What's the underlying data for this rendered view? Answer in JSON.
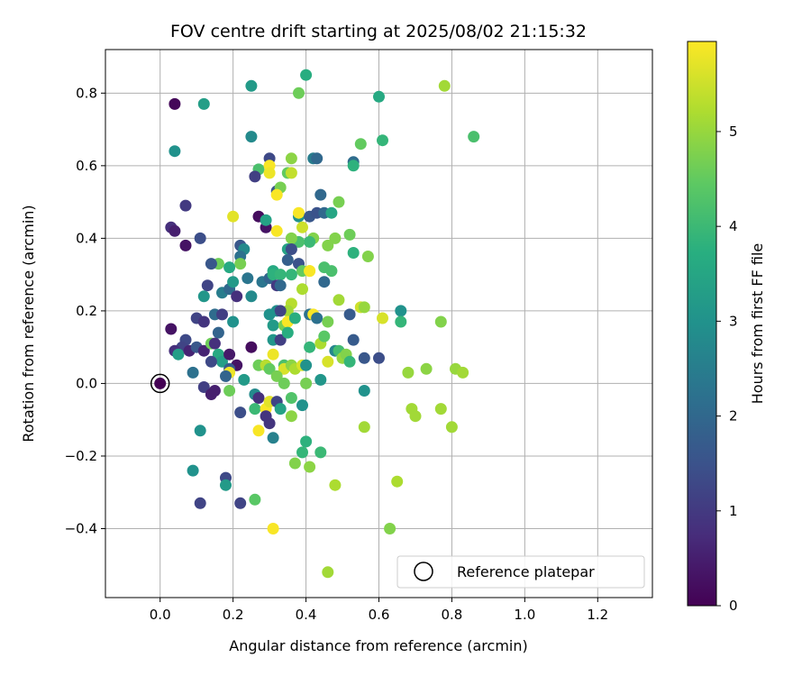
{
  "chart_data": {
    "type": "scatter",
    "title": "FOV centre drift starting at 2025/08/02 21:15:32",
    "xlabel": "Angular distance from reference (arcmin)",
    "ylabel": "Rotation from reference (arcmin)",
    "xlim": [
      -0.15,
      1.35
    ],
    "ylim": [
      -0.59,
      0.92
    ],
    "xticks": [
      "0.0",
      "0.2",
      "0.4",
      "0.6",
      "0.8",
      "1.0",
      "1.2"
    ],
    "xtick_values": [
      0.0,
      0.2,
      0.4,
      0.6,
      0.8,
      1.0,
      1.2
    ],
    "yticks": [
      "−0.4",
      "−0.2",
      "0.0",
      "0.2",
      "0.4",
      "0.6",
      "0.8"
    ],
    "ytick_values": [
      -0.4,
      -0.2,
      0.0,
      0.2,
      0.4,
      0.6,
      0.8
    ],
    "grid": true,
    "colormap": "viridis",
    "colorbar": {
      "label": "Hours from first FF file",
      "range": [
        0,
        5.95
      ],
      "ticks": [
        "0",
        "1",
        "2",
        "3",
        "4",
        "5"
      ],
      "tick_values": [
        0,
        1,
        2,
        3,
        4,
        5
      ]
    },
    "legend": {
      "entries": [
        "Reference platepar"
      ],
      "placement": "lower-right"
    },
    "reference": {
      "x": 0.0,
      "y": 0.0
    },
    "series": [
      {
        "points": [
          [
            0.04,
            0.77,
            0.1
          ],
          [
            0.12,
            0.77,
            3.3
          ],
          [
            0.04,
            0.64,
            3.0
          ],
          [
            0.25,
            0.82,
            3.2
          ],
          [
            0.4,
            0.85,
            3.7
          ],
          [
            0.38,
            0.8,
            4.6
          ],
          [
            0.6,
            0.79,
            3.6
          ],
          [
            0.78,
            0.82,
            5.1
          ],
          [
            0.86,
            0.68,
            4.2
          ],
          [
            0.25,
            0.68,
            2.8
          ],
          [
            0.3,
            0.62,
            1.3
          ],
          [
            0.27,
            0.59,
            4.2
          ],
          [
            0.3,
            0.6,
            5.9
          ],
          [
            0.3,
            0.58,
            5.8
          ],
          [
            0.26,
            0.57,
            1.1
          ],
          [
            0.36,
            0.62,
            4.9
          ],
          [
            0.35,
            0.58,
            4.5
          ],
          [
            0.36,
            0.58,
            5.4
          ],
          [
            0.32,
            0.53,
            1.6
          ],
          [
            0.33,
            0.54,
            4.7
          ],
          [
            0.32,
            0.52,
            5.9
          ],
          [
            0.42,
            0.62,
            2.5
          ],
          [
            0.43,
            0.62,
            2.0
          ],
          [
            0.53,
            0.61,
            2.1
          ],
          [
            0.53,
            0.6,
            3.8
          ],
          [
            0.55,
            0.66,
            4.5
          ],
          [
            0.61,
            0.67,
            3.9
          ],
          [
            0.44,
            0.52,
            2.0
          ],
          [
            0.49,
            0.5,
            4.7
          ],
          [
            0.07,
            0.49,
            1.0
          ],
          [
            0.03,
            0.43,
            0.8
          ],
          [
            0.04,
            0.42,
            0.5
          ],
          [
            0.07,
            0.38,
            0.3
          ],
          [
            0.11,
            0.4,
            1.4
          ],
          [
            0.2,
            0.46,
            5.7
          ],
          [
            0.27,
            0.46,
            0.2
          ],
          [
            0.29,
            0.43,
            0.3
          ],
          [
            0.29,
            0.45,
            3.4
          ],
          [
            0.32,
            0.42,
            5.9
          ],
          [
            0.38,
            0.46,
            3.0
          ],
          [
            0.38,
            0.47,
            5.9
          ],
          [
            0.39,
            0.43,
            5.5
          ],
          [
            0.41,
            0.46,
            1.6
          ],
          [
            0.43,
            0.47,
            1.5
          ],
          [
            0.45,
            0.47,
            2.0
          ],
          [
            0.47,
            0.47,
            3.5
          ],
          [
            0.52,
            0.41,
            4.6
          ],
          [
            0.53,
            0.36,
            3.8
          ],
          [
            0.57,
            0.35,
            4.8
          ],
          [
            0.48,
            0.4,
            4.8
          ],
          [
            0.46,
            0.38,
            4.8
          ],
          [
            0.42,
            0.4,
            4.8
          ],
          [
            0.41,
            0.39,
            4.0
          ],
          [
            0.38,
            0.39,
            4.2
          ],
          [
            0.36,
            0.4,
            4.8
          ],
          [
            0.35,
            0.37,
            3.4
          ],
          [
            0.36,
            0.37,
            1.4
          ],
          [
            0.38,
            0.33,
            1.5
          ],
          [
            0.35,
            0.34,
            1.8
          ],
          [
            0.39,
            0.31,
            4.5
          ],
          [
            0.41,
            0.31,
            5.8
          ],
          [
            0.45,
            0.32,
            4.2
          ],
          [
            0.47,
            0.31,
            4.2
          ],
          [
            0.45,
            0.28,
            2.0
          ],
          [
            0.41,
            0.31,
            5.9
          ],
          [
            0.22,
            0.38,
            1.6
          ],
          [
            0.23,
            0.37,
            2.8
          ],
          [
            0.22,
            0.35,
            2.2
          ],
          [
            0.22,
            0.33,
            4.7
          ],
          [
            0.19,
            0.32,
            3.6
          ],
          [
            0.16,
            0.33,
            4.6
          ],
          [
            0.14,
            0.33,
            1.6
          ],
          [
            0.28,
            0.28,
            2.3
          ],
          [
            0.3,
            0.29,
            1.9
          ],
          [
            0.31,
            0.31,
            3.6
          ],
          [
            0.31,
            0.3,
            3.8
          ],
          [
            0.33,
            0.3,
            3.9
          ],
          [
            0.32,
            0.27,
            1.0
          ],
          [
            0.33,
            0.27,
            2.0
          ],
          [
            0.36,
            0.3,
            3.9
          ],
          [
            0.39,
            0.26,
            5.2
          ],
          [
            0.36,
            0.22,
            5.3
          ],
          [
            0.35,
            0.2,
            5.1
          ],
          [
            0.32,
            0.2,
            2.9
          ],
          [
            0.33,
            0.2,
            1.2
          ],
          [
            0.3,
            0.19,
            3.0
          ],
          [
            0.31,
            0.16,
            3.2
          ],
          [
            0.34,
            0.16,
            4.7
          ],
          [
            0.35,
            0.17,
            5.9
          ],
          [
            0.37,
            0.18,
            3.7
          ],
          [
            0.41,
            0.19,
            2.2
          ],
          [
            0.42,
            0.19,
            5.9
          ],
          [
            0.43,
            0.18,
            2.2
          ],
          [
            0.46,
            0.17,
            4.7
          ],
          [
            0.49,
            0.23,
            5.1
          ],
          [
            0.52,
            0.19,
            1.7
          ],
          [
            0.55,
            0.21,
            5.5
          ],
          [
            0.56,
            0.21,
            5.0
          ],
          [
            0.61,
            0.18,
            5.6
          ],
          [
            0.66,
            0.2,
            3.0
          ],
          [
            0.66,
            0.17,
            3.9
          ],
          [
            0.77,
            0.17,
            4.8
          ],
          [
            0.1,
            0.18,
            1.2
          ],
          [
            0.12,
            0.17,
            0.9
          ],
          [
            0.13,
            0.27,
            1.2
          ],
          [
            0.15,
            0.19,
            2.1
          ],
          [
            0.17,
            0.19,
            1.1
          ],
          [
            0.17,
            0.25,
            2.5
          ],
          [
            0.19,
            0.26,
            2.0
          ],
          [
            0.2,
            0.28,
            3.2
          ],
          [
            0.21,
            0.24,
            0.8
          ],
          [
            0.24,
            0.29,
            2.3
          ],
          [
            0.25,
            0.24,
            2.8
          ],
          [
            0.2,
            0.17,
            3.0
          ],
          [
            0.16,
            0.14,
            1.9
          ],
          [
            0.12,
            0.24,
            3.1
          ],
          [
            0.03,
            0.15,
            0.3
          ],
          [
            0.07,
            0.12,
            1.3
          ],
          [
            0.06,
            0.1,
            1.2
          ],
          [
            0.04,
            0.09,
            0.8
          ],
          [
            0.05,
            0.08,
            3.3
          ],
          [
            0.08,
            0.09,
            0.6
          ],
          [
            0.1,
            0.1,
            1.6
          ],
          [
            0.12,
            0.09,
            0.6
          ],
          [
            0.09,
            0.03,
            2.2
          ],
          [
            0.14,
            0.11,
            4.6
          ],
          [
            0.15,
            0.11,
            0.8
          ],
          [
            0.16,
            0.08,
            3.6
          ],
          [
            0.17,
            0.06,
            3.3
          ],
          [
            0.14,
            0.06,
            1.3
          ],
          [
            0.19,
            0.08,
            0.4
          ],
          [
            0.21,
            0.05,
            0.3
          ],
          [
            0.19,
            0.04,
            1.7
          ],
          [
            0.19,
            0.03,
            5.8
          ],
          [
            0.18,
            0.02,
            1.9
          ],
          [
            0.23,
            0.01,
            3.2
          ],
          [
            0.25,
            0.1,
            0.2
          ],
          [
            0.27,
            0.05,
            4.6
          ],
          [
            0.29,
            0.05,
            5.3
          ],
          [
            0.3,
            0.04,
            4.5
          ],
          [
            0.31,
            0.08,
            5.8
          ],
          [
            0.31,
            0.12,
            3.1
          ],
          [
            0.33,
            0.12,
            1.1
          ],
          [
            0.35,
            0.14,
            3.7
          ],
          [
            0.34,
            0.05,
            4.2
          ],
          [
            0.34,
            0.04,
            5.6
          ],
          [
            0.32,
            0.02,
            4.7
          ],
          [
            0.34,
            0.0,
            4.6
          ],
          [
            0.36,
            0.05,
            4.9
          ],
          [
            0.37,
            0.04,
            5.2
          ],
          [
            0.39,
            0.05,
            5.6
          ],
          [
            0.4,
            0.05,
            3.0
          ],
          [
            0.41,
            0.1,
            3.9
          ],
          [
            0.44,
            0.11,
            5.2
          ],
          [
            0.45,
            0.13,
            4.4
          ],
          [
            0.44,
            0.01,
            3.1
          ],
          [
            0.46,
            0.06,
            5.6
          ],
          [
            0.48,
            0.09,
            2.7
          ],
          [
            0.49,
            0.09,
            4.1
          ],
          [
            0.5,
            0.07,
            5.0
          ],
          [
            0.51,
            0.08,
            4.8
          ],
          [
            0.52,
            0.06,
            3.9
          ],
          [
            0.53,
            0.12,
            1.7
          ],
          [
            0.56,
            0.07,
            1.6
          ],
          [
            0.6,
            0.07,
            1.4
          ],
          [
            0.68,
            0.03,
            5.0
          ],
          [
            0.73,
            0.04,
            4.9
          ],
          [
            0.81,
            0.04,
            5.0
          ],
          [
            0.83,
            0.03,
            5.1
          ],
          [
            0.69,
            -0.07,
            5.1
          ],
          [
            0.7,
            -0.09,
            5.1
          ],
          [
            0.77,
            -0.07,
            5.1
          ],
          [
            0.8,
            -0.12,
            5.1
          ],
          [
            0.56,
            -0.02,
            3.0
          ],
          [
            0.56,
            -0.12,
            5.1
          ],
          [
            0.12,
            -0.01,
            1.1
          ],
          [
            0.14,
            -0.03,
            0.5
          ],
          [
            0.15,
            -0.02,
            0.5
          ],
          [
            0.19,
            -0.02,
            4.6
          ],
          [
            0.26,
            -0.03,
            2.8
          ],
          [
            0.27,
            -0.04,
            0.8
          ],
          [
            0.26,
            -0.07,
            4.0
          ],
          [
            0.29,
            -0.07,
            5.9
          ],
          [
            0.3,
            -0.05,
            5.7
          ],
          [
            0.3,
            -0.11,
            0.9
          ],
          [
            0.31,
            -0.15,
            2.6
          ],
          [
            0.27,
            -0.13,
            5.9
          ],
          [
            0.29,
            -0.09,
            0.9
          ],
          [
            0.32,
            -0.05,
            1.2
          ],
          [
            0.33,
            -0.07,
            3.4
          ],
          [
            0.36,
            -0.04,
            4.3
          ],
          [
            0.36,
            -0.09,
            4.9
          ],
          [
            0.39,
            -0.06,
            3.0
          ],
          [
            0.4,
            0.0,
            4.7
          ],
          [
            0.4,
            -0.16,
            3.8
          ],
          [
            0.39,
            -0.19,
            3.9
          ],
          [
            0.37,
            -0.22,
            4.8
          ],
          [
            0.41,
            -0.23,
            4.9
          ],
          [
            0.44,
            -0.19,
            4.0
          ],
          [
            0.48,
            -0.28,
            5.2
          ],
          [
            0.11,
            -0.13,
            3.0
          ],
          [
            0.09,
            -0.24,
            3.0
          ],
          [
            0.18,
            -0.26,
            1.3
          ],
          [
            0.18,
            -0.28,
            3.2
          ],
          [
            0.22,
            -0.08,
            1.4
          ],
          [
            0.26,
            -0.32,
            4.4
          ],
          [
            0.22,
            -0.33,
            1.2
          ],
          [
            0.11,
            -0.33,
            1.2
          ],
          [
            0.31,
            -0.4,
            5.9
          ],
          [
            0.63,
            -0.4,
            4.8
          ],
          [
            0.65,
            -0.27,
            5.2
          ],
          [
            0.46,
            -0.52,
            5.1
          ]
        ]
      }
    ]
  }
}
